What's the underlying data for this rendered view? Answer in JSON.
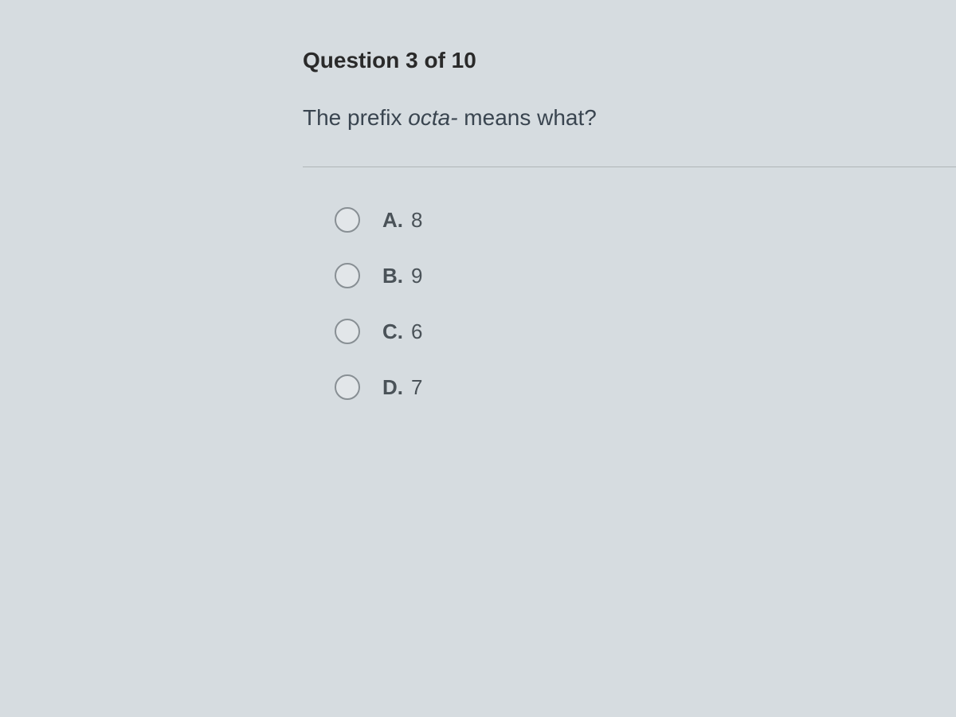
{
  "question": {
    "header": "Question 3 of 10",
    "prompt_prefix": "The prefix ",
    "prompt_italic": "octa-",
    "prompt_suffix": " means what?"
  },
  "options": [
    {
      "letter": "A.",
      "value": "8"
    },
    {
      "letter": "B.",
      "value": "9"
    },
    {
      "letter": "C.",
      "value": "6"
    },
    {
      "letter": "D.",
      "value": "7"
    }
  ],
  "colors": {
    "background": "#d6dce0",
    "header_text": "#2a2a2a",
    "question_text": "#3a4550",
    "option_text": "#4a5258",
    "radio_border": "#888f94",
    "radio_fill": "#e2e6e9",
    "divider": "#b0b5b8"
  },
  "typography": {
    "header_fontsize": 28,
    "question_fontsize": 28,
    "option_fontsize": 26,
    "font_family": "Arial"
  }
}
